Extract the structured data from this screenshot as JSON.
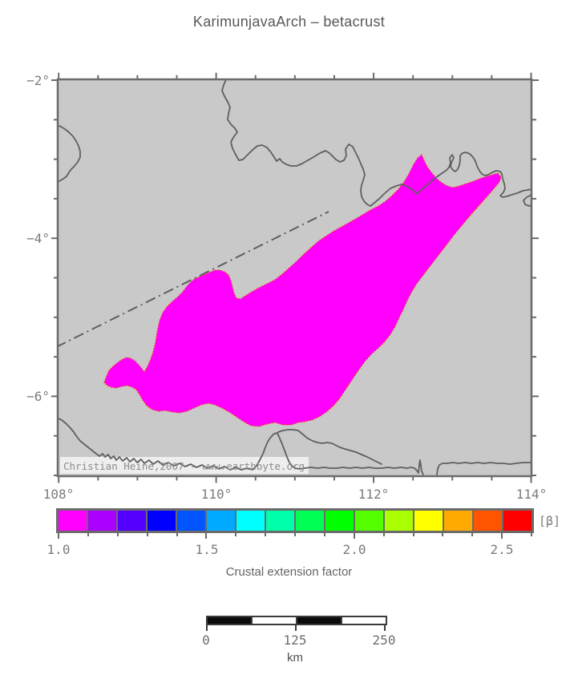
{
  "title": "KarimunjavaArch – betacrust",
  "map": {
    "lon_labels": [
      "108°",
      "110°",
      "112°",
      "114°"
    ],
    "lat_labels": [
      "−2°",
      "−4°",
      "−6°"
    ],
    "watermark": "Christian Heine,2007 - www.earthbyte.org",
    "region_name": "betacrust extension region",
    "colors": {
      "background": "#c9c9c9",
      "coastline": "#5f5f5f",
      "frame": "#6b6b6b",
      "region_fill": "#ff00ff",
      "region_outline": "#ff3000",
      "tectonic_line": "#5f5f5f"
    }
  },
  "colorbar": {
    "unit_label": "[β]",
    "tick_labels": [
      "1.0",
      "1.5",
      "2.0",
      "2.5"
    ],
    "tick_values": [
      1.0,
      1.5,
      2.0,
      2.5
    ],
    "range_min": 1.0,
    "range_max": 2.6,
    "segment_step": 0.1,
    "segment_colors": [
      "#ff00ff",
      "#aa00ff",
      "#5500ff",
      "#0000ff",
      "#0055ff",
      "#00aaff",
      "#00ffff",
      "#00ffaa",
      "#00ff55",
      "#00ff00",
      "#55ff00",
      "#aaff00",
      "#ffff00",
      "#ffaa00",
      "#ff5500",
      "#ff0000"
    ],
    "caption": "Crustal extension factor"
  },
  "scalebar": {
    "tick_labels": [
      "0",
      "125",
      "250"
    ],
    "unit": "km",
    "segment_colors": [
      "#0b0b0b",
      "#ffffff",
      "#0b0b0b",
      "#ffffff"
    ]
  }
}
